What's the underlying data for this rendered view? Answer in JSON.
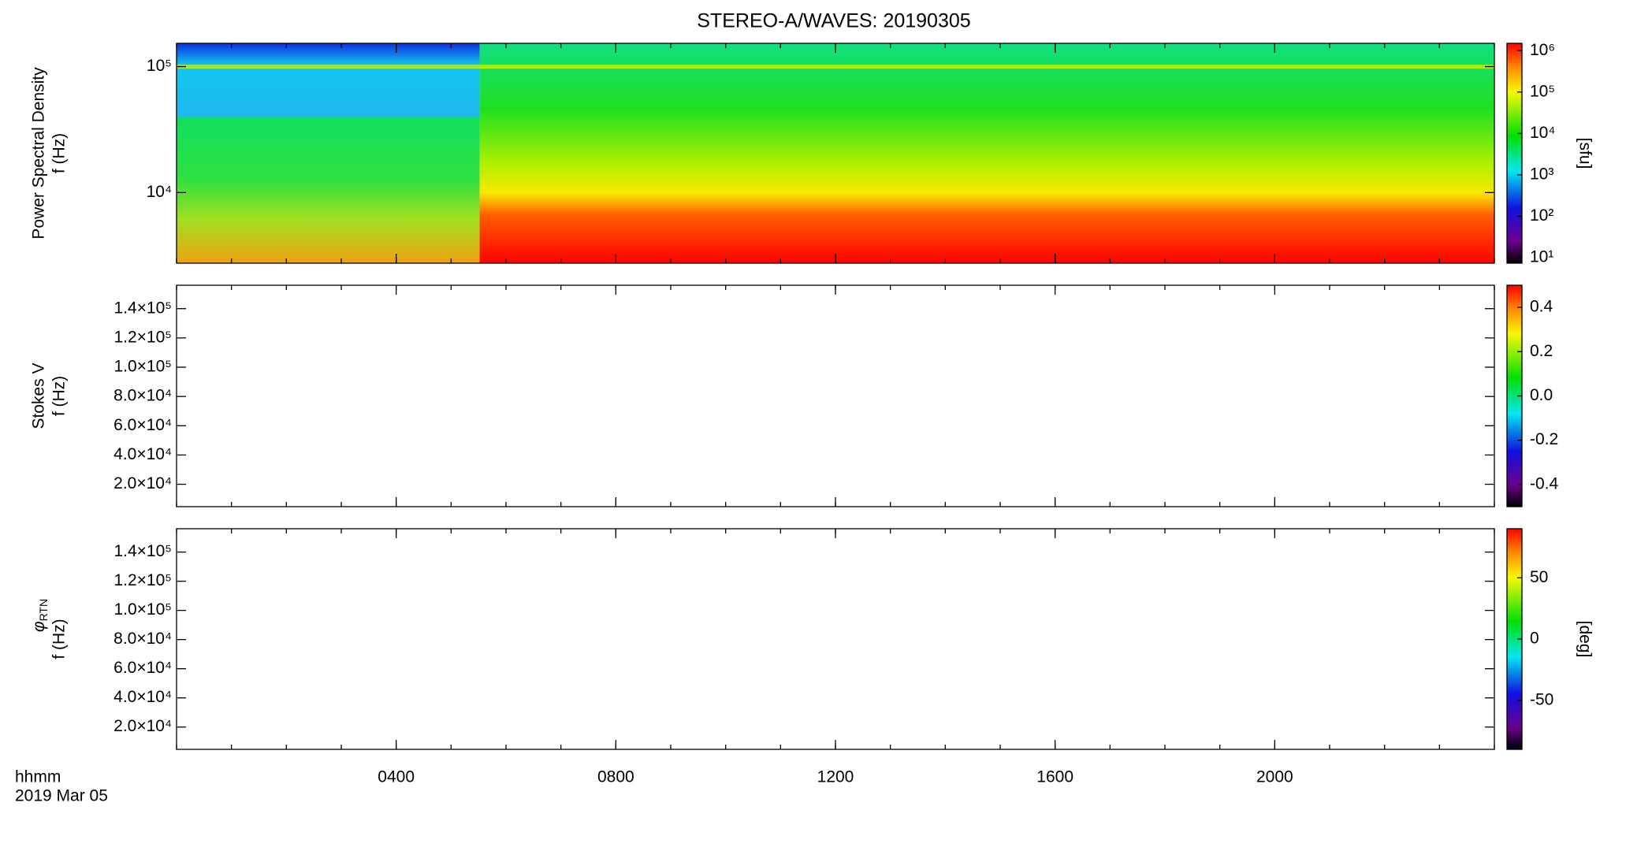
{
  "chart_data": [
    {
      "type": "spectrogram",
      "title": "STEREO-A/WAVES: 20190305",
      "ylabel": "Power Spectral Density",
      "ylabel2": "f (Hz)",
      "ylog": true,
      "ylim": [
        2750,
        153000
      ],
      "yticks": [
        {
          "value": 10000,
          "label": "10⁴"
        },
        {
          "value": 100000,
          "label": "10⁵"
        }
      ],
      "xlim": [
        0,
        24
      ],
      "xticks": [
        4,
        8,
        12,
        16,
        20
      ],
      "colormap": "rainbow",
      "clog": true,
      "clim": [
        7.4,
        1500000
      ],
      "cticks": [
        {
          "value": 10,
          "label": "10¹"
        },
        {
          "value": 100,
          "label": "10²"
        },
        {
          "value": 1000,
          "label": "10³"
        },
        {
          "value": 10000,
          "label": "10⁴"
        },
        {
          "value": 100000,
          "label": "10⁵"
        },
        {
          "value": 1000000,
          "label": "10⁶"
        }
      ],
      "clabel": "[sfu]"
    },
    {
      "type": "spectrogram",
      "ylabel": "Stokes V",
      "ylabel2": "f (Hz)",
      "ylog": false,
      "ylim": [
        4700,
        156000
      ],
      "yticks": [
        {
          "value": 20000,
          "label": "2.0×10⁴"
        },
        {
          "value": 40000,
          "label": "4.0×10⁴"
        },
        {
          "value": 60000,
          "label": "6.0×10⁴"
        },
        {
          "value": 80000,
          "label": "8.0×10⁴"
        },
        {
          "value": 100000,
          "label": "1.0×10⁵"
        },
        {
          "value": 120000,
          "label": "1.2×10⁵"
        },
        {
          "value": 140000,
          "label": "1.4×10⁵"
        }
      ],
      "xlim": [
        0,
        24
      ],
      "xticks": [
        4,
        8,
        12,
        16,
        20
      ],
      "colormap": "rainbow",
      "clog": false,
      "clim": [
        -0.5,
        0.5
      ],
      "cticks": [
        -0.4,
        -0.2,
        {
          "value": 0,
          "label": "0.0"
        },
        0.2,
        0.4
      ]
    },
    {
      "type": "spectrogram",
      "ylabel": "φ",
      "ylabel_sub": "RTN",
      "ylabel2": "f (Hz)",
      "ylog": false,
      "ylim": [
        4700,
        156000
      ],
      "yticks": [
        {
          "value": 20000,
          "label": "2.0×10⁴"
        },
        {
          "value": 40000,
          "label": "4.0×10⁴"
        },
        {
          "value": 60000,
          "label": "6.0×10⁴"
        },
        {
          "value": 80000,
          "label": "8.0×10⁴"
        },
        {
          "value": 100000,
          "label": "1.0×10⁵"
        },
        {
          "value": 120000,
          "label": "1.2×10⁵"
        },
        {
          "value": 140000,
          "label": "1.4×10⁵"
        }
      ],
      "xlim": [
        0,
        24
      ],
      "xticks": [
        {
          "value": 4,
          "label": "0400"
        },
        {
          "value": 8,
          "label": "0800"
        },
        {
          "value": 12,
          "label": "1200"
        },
        {
          "value": 16,
          "label": "1600"
        },
        {
          "value": 20,
          "label": "2000"
        }
      ],
      "xlabel": "hhmm",
      "date": "2019 Mar 05",
      "colormap": "rainbow",
      "clog": false,
      "clim": [
        -90,
        90
      ],
      "cticks": [
        -50,
        0,
        50
      ],
      "clabel": "[deg]"
    }
  ]
}
